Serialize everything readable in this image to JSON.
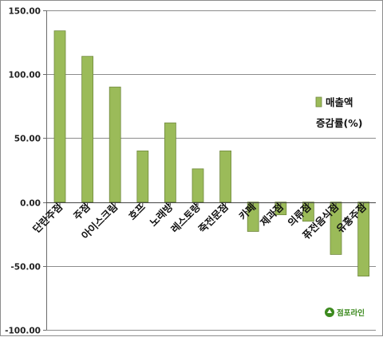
{
  "chart_data": {
    "type": "bar",
    "categories": [
      "단란주점",
      "주점",
      "아이스크림",
      "호프",
      "노래방",
      "레스토랑",
      "죽전문점",
      "카페",
      "제과점",
      "의류점",
      "퓨전음식점",
      "유흥주점"
    ],
    "series": [
      {
        "name": "매출액 증감률(%)",
        "values": [
          134,
          114,
          90,
          40,
          62,
          26,
          40,
          -23,
          -10,
          -15,
          -41,
          -58
        ]
      }
    ],
    "ylim": [
      -100,
      150
    ],
    "yticks": [
      150,
      100,
      50,
      0,
      -50,
      -100
    ],
    "ytick_labels": [
      "150.00",
      "100.00",
      "50.00",
      "0.00",
      "-50.00",
      "-100.00"
    ],
    "grid": true,
    "legend": {
      "position": "right",
      "line1": "매출액",
      "line2": "증감률(%)"
    },
    "colors": {
      "bar": "#9bbb59",
      "bar_border": "#71893f",
      "grid": "#8c8c8c",
      "axis": "#6b6b6b"
    }
  },
  "watermark": {
    "text": "점포라인",
    "color": "#3c8a1e"
  }
}
